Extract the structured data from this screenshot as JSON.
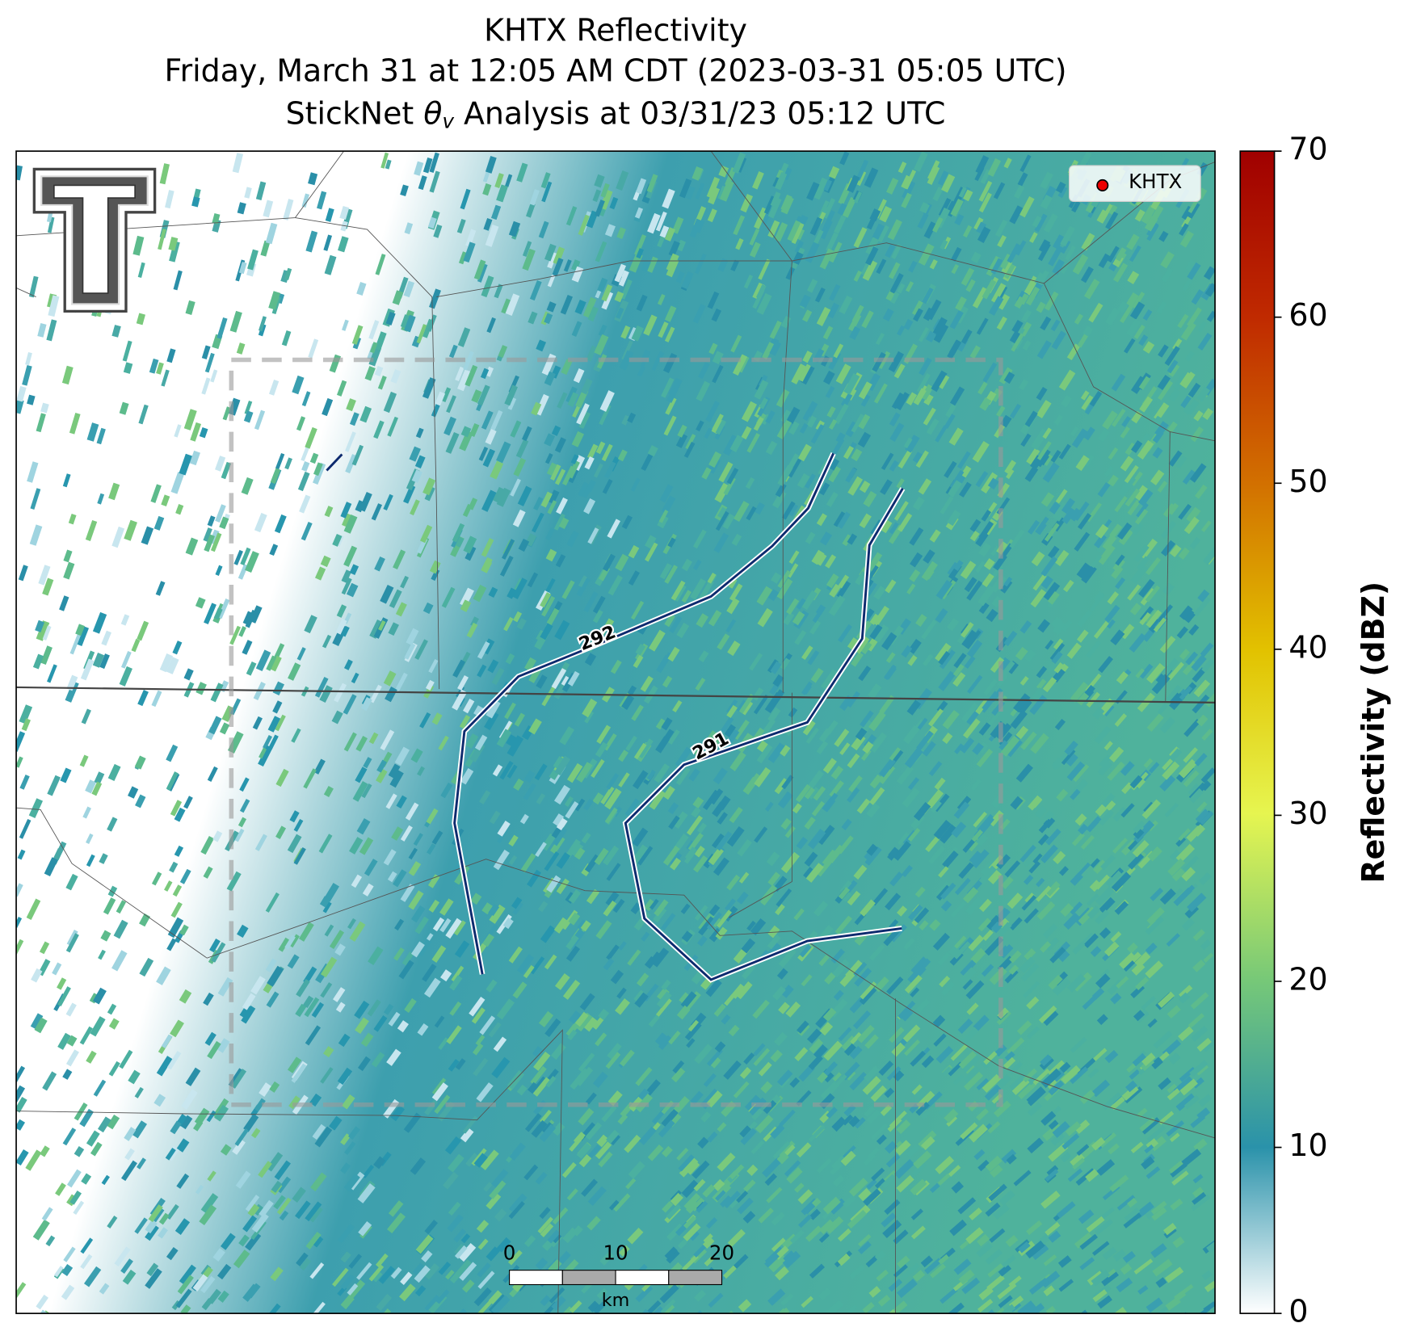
{
  "chart_data": {
    "type": "radar-map",
    "title_lines": [
      "KHTX Reflectivity",
      "Friday, March 31 at 12:05 AM CDT (2023-03-31 05:05 UTC)"
    ],
    "subtitle_parts": {
      "before": "StickNet ",
      "symbol": "θ",
      "subscript": "v",
      "after": " Analysis at 03/31/23 05:12 UTC"
    },
    "legend": [
      "KHTX"
    ],
    "contour_labels": [
      "292",
      "291"
    ],
    "scale_bar": {
      "ticks": [
        0,
        10,
        20
      ],
      "unit": "km"
    },
    "colorbar": {
      "label": "Reflectivity (dBZ)",
      "lim": [
        0,
        70
      ],
      "ticks": [
        0,
        10,
        20,
        30,
        40,
        50,
        60,
        70
      ]
    }
  }
}
